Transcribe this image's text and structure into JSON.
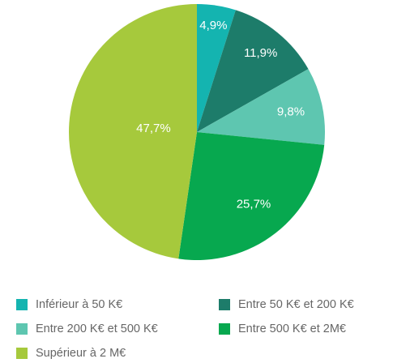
{
  "chart_data": {
    "type": "pie",
    "categories": [
      "Inférieur à 50 K€",
      "Entre 50 K€ et 200 K€",
      "Entre 200 K€ et 500 K€",
      "Entre 500 K€ et 2M€",
      "Supérieur à 2 M€"
    ],
    "values": [
      4.9,
      11.9,
      9.8,
      25.7,
      47.7
    ],
    "value_labels": [
      "4,9%",
      "11,9%",
      "9,8%",
      "25,7%",
      "47,7%"
    ],
    "colors": [
      "#14b4b0",
      "#1d7c6a",
      "#5ec6b0",
      "#07a84f",
      "#a6c93c"
    ],
    "legend": "bottom"
  }
}
